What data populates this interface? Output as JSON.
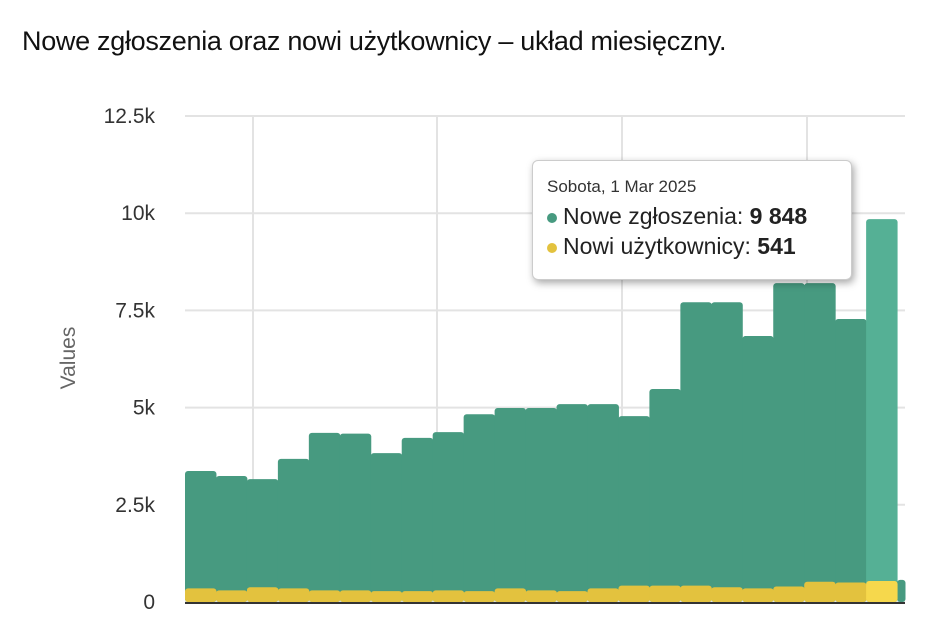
{
  "chart_data": {
    "type": "area",
    "title": "Nowe zgłoszenia oraz nowi użytkownicy – układ miesięczny.",
    "ylabel": "Values",
    "ylim": [
      0,
      12500
    ],
    "yticks": [
      "0",
      "2.5k",
      "5k",
      "7.5k",
      "10k",
      "12.5k"
    ],
    "yticks_values": [
      0,
      2500,
      5000,
      7500,
      10000,
      12500
    ],
    "grid": true,
    "step": true,
    "series": [
      {
        "name": "Nowe zgłoszenia",
        "color": "#479a80",
        "values": [
          3370,
          3240,
          3160,
          3680,
          4350,
          4330,
          3830,
          4220,
          4370,
          4830,
          4990,
          4990,
          5090,
          5090,
          4780,
          5480,
          7710,
          7710,
          6840,
          8200,
          8200,
          7280,
          9848,
          570
        ]
      },
      {
        "name": "Nowi użytkownicy",
        "color": "#e3c23e",
        "values": [
          350,
          300,
          380,
          350,
          300,
          300,
          280,
          280,
          300,
          280,
          350,
          300,
          280,
          350,
          420,
          420,
          420,
          380,
          350,
          400,
          520,
          500,
          541,
          0
        ]
      }
    ],
    "highlight_index": 22,
    "highlight_colors": [
      "#55b095",
      "#f6d84c"
    ]
  },
  "tooltip": {
    "date": "Sobota, 1 Mar 2025",
    "rows": [
      {
        "label": "Nowe zgłoszenia:",
        "value": "9 848",
        "color": "#479a80"
      },
      {
        "label": "Nowi użytkownicy:",
        "value": "541",
        "color": "#e3c23e"
      }
    ]
  }
}
